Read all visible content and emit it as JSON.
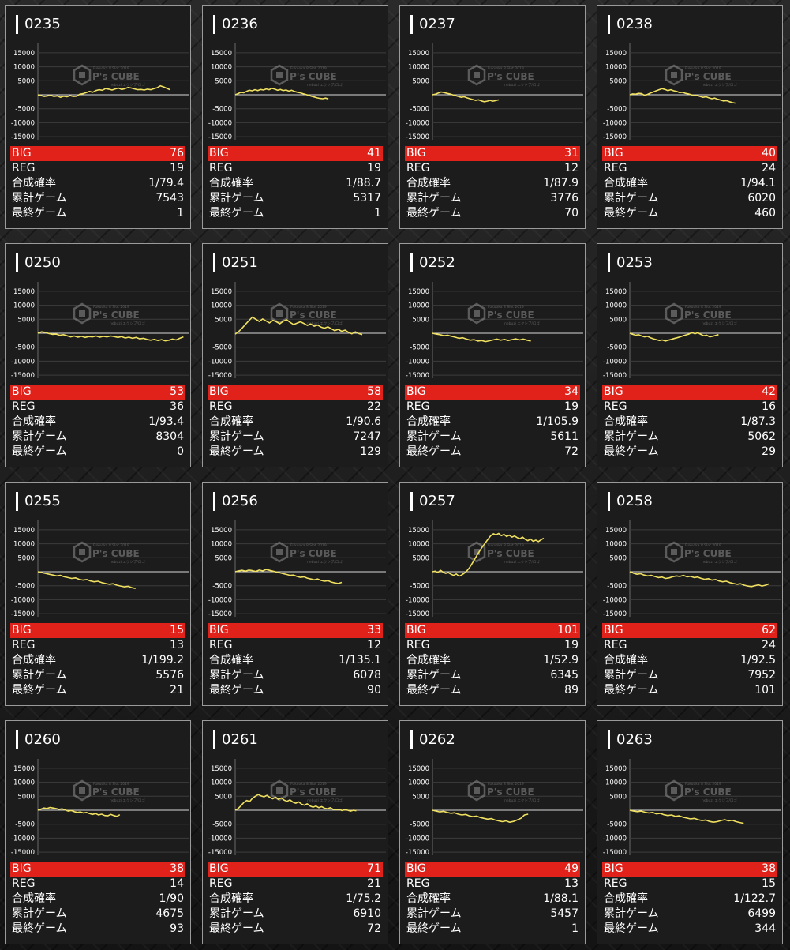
{
  "labels": {
    "big": "BIG",
    "reg": "REG",
    "combined": "合成確率",
    "total_games": "累計ゲーム",
    "last_games": "最終ゲーム"
  },
  "watermark": {
    "top": "Fukuoka 8 Slot 2019",
    "main": "P's CUBE",
    "bottom": "nebuzi エクシブ/ロゴ"
  },
  "axis_ticks": [
    "15000",
    "10000",
    "5000",
    "-5000",
    "-10000",
    "-15000"
  ],
  "colors": {
    "line": "#f0e060",
    "big_bar": "#e0221b",
    "panel": "#1c1c1c",
    "border": "#9a9a9a"
  },
  "machines": [
    {
      "id": "0235",
      "big": "76",
      "reg": "19",
      "combined": "1/79.4",
      "total": "7543",
      "last": "1"
    },
    {
      "id": "0236",
      "big": "41",
      "reg": "19",
      "combined": "1/88.7",
      "total": "5317",
      "last": "1"
    },
    {
      "id": "0237",
      "big": "31",
      "reg": "12",
      "combined": "1/87.9",
      "total": "3776",
      "last": "70"
    },
    {
      "id": "0238",
      "big": "40",
      "reg": "24",
      "combined": "1/94.1",
      "total": "6020",
      "last": "460"
    },
    {
      "id": "0250",
      "big": "53",
      "reg": "36",
      "combined": "1/93.4",
      "total": "8304",
      "last": "0"
    },
    {
      "id": "0251",
      "big": "58",
      "reg": "22",
      "combined": "1/90.6",
      "total": "7247",
      "last": "129"
    },
    {
      "id": "0252",
      "big": "34",
      "reg": "19",
      "combined": "1/105.9",
      "total": "5611",
      "last": "72"
    },
    {
      "id": "0253",
      "big": "42",
      "reg": "16",
      "combined": "1/87.3",
      "total": "5062",
      "last": "29"
    },
    {
      "id": "0255",
      "big": "15",
      "reg": "13",
      "combined": "1/199.2",
      "total": "5576",
      "last": "21"
    },
    {
      "id": "0256",
      "big": "33",
      "reg": "12",
      "combined": "1/135.1",
      "total": "6078",
      "last": "90"
    },
    {
      "id": "0257",
      "big": "101",
      "reg": "19",
      "combined": "1/52.9",
      "total": "6345",
      "last": "89"
    },
    {
      "id": "0258",
      "big": "62",
      "reg": "24",
      "combined": "1/92.5",
      "total": "7952",
      "last": "101"
    },
    {
      "id": "0260",
      "big": "38",
      "reg": "14",
      "combined": "1/90",
      "total": "4675",
      "last": "93"
    },
    {
      "id": "0261",
      "big": "71",
      "reg": "21",
      "combined": "1/75.2",
      "total": "6910",
      "last": "72"
    },
    {
      "id": "0262",
      "big": "49",
      "reg": "13",
      "combined": "1/88.1",
      "total": "5457",
      "last": "1"
    },
    {
      "id": "0263",
      "big": "38",
      "reg": "15",
      "combined": "1/122.7",
      "total": "6499",
      "last": "344"
    }
  ],
  "trends": [
    [
      0,
      -300,
      -600,
      -400,
      -200,
      -600,
      -400,
      -900,
      -500,
      -700,
      -300,
      -600,
      -500,
      200,
      400,
      800,
      1200,
      900,
      1500,
      1800,
      1600,
      2200,
      2000,
      1700,
      2100,
      2400,
      1900,
      2200,
      2600,
      2400,
      2100,
      1800,
      1900,
      1700,
      2000,
      1800,
      2200,
      2500,
      3200,
      2800,
      2300,
      1800
    ],
    [
      0,
      400,
      900,
      700,
      1200,
      1600,
      1400,
      1800,
      1500,
      1900,
      1700,
      2100,
      1800,
      2300,
      2000,
      1600,
      1900,
      1500,
      1700,
      1300,
      1600,
      1200,
      900,
      700,
      400,
      100,
      -200,
      -500,
      -800,
      -1100,
      -1300,
      -1400,
      -1200,
      -1500
    ],
    [
      0,
      200,
      600,
      1000,
      800,
      500,
      300,
      0,
      -300,
      -600,
      -900,
      -700,
      -1100,
      -1400,
      -1700,
      -2000,
      -1800,
      -2200,
      -2500,
      -2300,
      -2000,
      -2300,
      -2100,
      -1800
    ],
    [
      0,
      300,
      200,
      500,
      400,
      -200,
      100,
      600,
      1000,
      1400,
      1800,
      2200,
      1900,
      1500,
      1800,
      1400,
      1200,
      800,
      900,
      500,
      300,
      0,
      -300,
      -200,
      -600,
      -900,
      -700,
      -1100,
      -1400,
      -1200,
      -1600,
      -1900,
      -2200,
      -2100,
      -2500,
      -2800,
      -3000
    ],
    [
      0,
      500,
      300,
      -100,
      -400,
      -300,
      -700,
      -500,
      -900,
      -1300,
      -1000,
      -1400,
      -1100,
      -1500,
      -1200,
      -1300,
      -1000,
      -1400,
      -1100,
      -1300,
      -1000,
      -1200,
      -1500,
      -1200,
      -1700,
      -1400,
      -1800,
      -1500,
      -2000,
      -1800,
      -2200,
      -2500,
      -2200,
      -2600,
      -2300,
      -2700,
      -2500,
      -2100,
      -2400,
      -1800,
      -1300
    ],
    [
      -300,
      600,
      1800,
      3200,
      4500,
      5800,
      5000,
      4200,
      5100,
      4400,
      3700,
      4600,
      4100,
      3400,
      4300,
      4800,
      3900,
      3100,
      3600,
      4100,
      3500,
      2800,
      3300,
      2500,
      2900,
      2200,
      1800,
      2300,
      1600,
      900,
      1400,
      700,
      1100,
      300,
      -200,
      500,
      -100,
      -500
    ],
    [
      0,
      -300,
      -500,
      -900,
      -700,
      -1100,
      -1400,
      -1800,
      -1600,
      -2100,
      -2500,
      -2300,
      -2800,
      -2600,
      -3000,
      -2700,
      -2400,
      -2100,
      -2500,
      -2200,
      -2600,
      -2300,
      -2000,
      -2400,
      -2100,
      -2500,
      -2800
    ],
    [
      0,
      -400,
      -700,
      -500,
      -1000,
      -1300,
      -1100,
      -1600,
      -2000,
      -2300,
      -2600,
      -2400,
      -2800,
      -2500,
      -2200,
      -1900,
      -1600,
      -1300,
      -900,
      -600,
      -300,
      300,
      -200,
      200,
      -400,
      -900,
      -700,
      -1300,
      -1100,
      -800,
      -500
    ],
    [
      0,
      -300,
      -600,
      -900,
      -1200,
      -1500,
      -1300,
      -1800,
      -2100,
      -2400,
      -2200,
      -2700,
      -3000,
      -2800,
      -3300,
      -3600,
      -3400,
      -3900,
      -4200,
      -4500,
      -4300,
      -4800,
      -5100,
      -5400,
      -5200,
      -5700,
      -6000
    ],
    [
      0,
      300,
      500,
      200,
      600,
      400,
      100,
      600,
      300,
      800,
      500,
      200,
      -100,
      -400,
      -700,
      -1000,
      -1300,
      -1200,
      -1700,
      -2000,
      -1800,
      -2300,
      -2600,
      -2900,
      -2600,
      -3100,
      -3400,
      -3200,
      -3700,
      -4000,
      -4200,
      -3800
    ],
    [
      0,
      200,
      -300,
      500,
      -100,
      -600,
      -300,
      -900,
      -1300,
      -800,
      -1600,
      -1200,
      -500,
      300,
      1500,
      3000,
      4600,
      6200,
      7700,
      9100,
      10400,
      11700,
      12900,
      13600,
      13200,
      13700,
      12900,
      13400,
      12600,
      13100,
      12400,
      12800,
      12200,
      11800,
      12400,
      11600,
      11100,
      11700,
      10900,
      11300,
      10800,
      11400,
      12000
    ],
    [
      0,
      -500,
      -900,
      -700,
      -1200,
      -1500,
      -1300,
      -1700,
      -2100,
      -1900,
      -2400,
      -2200,
      -1800,
      -1500,
      -1700,
      -1300,
      -1800,
      -1600,
      -2100,
      -1900,
      -2400,
      -2700,
      -2500,
      -3000,
      -2800,
      -3300,
      -3600,
      -3400,
      -3900,
      -4200,
      -4500,
      -4300,
      -4800,
      -5100,
      -5300,
      -5000,
      -4700,
      -5100,
      -4800,
      -4300
    ],
    [
      0,
      400,
      800,
      600,
      1000,
      800,
      600,
      300,
      500,
      100,
      -300,
      -100,
      -500,
      -800,
      -600,
      -1000,
      -800,
      -1200,
      -1500,
      -1200,
      -1700,
      -1400,
      -1900,
      -2000,
      -1500,
      -1900,
      -2200,
      -1600
    ],
    [
      0,
      600,
      1600,
      2800,
      3500,
      3100,
      4300,
      5000,
      5600,
      5100,
      4800,
      5300,
      4600,
      4100,
      4700,
      3900,
      4400,
      3600,
      3200,
      3700,
      2900,
      2500,
      3000,
      2200,
      1800,
      2300,
      1500,
      1100,
      1500,
      900,
      1300,
      700,
      500,
      900,
      300,
      100,
      400,
      -100,
      200,
      0,
      -300,
      0,
      -200
    ],
    [
      0,
      -300,
      -600,
      -400,
      -800,
      -1100,
      -900,
      -1400,
      -1700,
      -1500,
      -2000,
      -2300,
      -2100,
      -2600,
      -2900,
      -3200,
      -3000,
      -3500,
      -3800,
      -4100,
      -3800,
      -4300,
      -4000,
      -3500,
      -2900,
      -1700,
      -1400
    ],
    [
      0,
      -300,
      -500,
      -300,
      -700,
      -1000,
      -800,
      -1300,
      -1100,
      -1600,
      -1900,
      -1700,
      -2200,
      -2000,
      -2500,
      -2800,
      -3100,
      -2900,
      -3400,
      -3700,
      -3500,
      -4000,
      -4300,
      -4100,
      -3700,
      -3400,
      -3800,
      -3600,
      -4100,
      -4400,
      -4700
    ]
  ]
}
